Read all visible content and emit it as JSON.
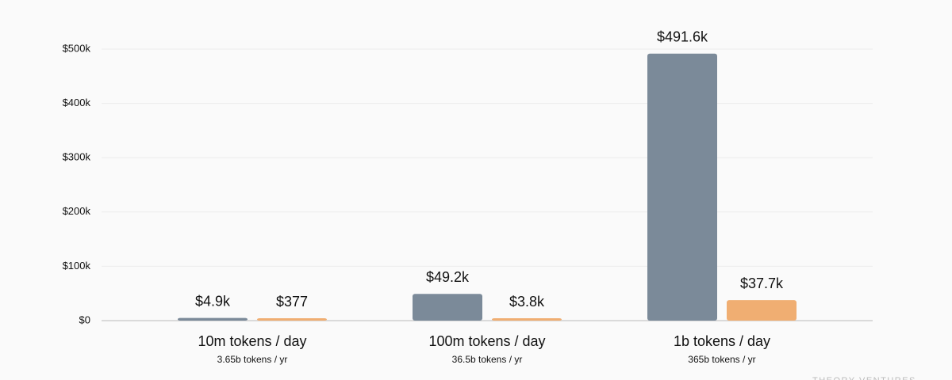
{
  "chart_data": {
    "type": "bar",
    "categories": [
      "10m tokens / day",
      "100m tokens / day",
      "1b tokens / day"
    ],
    "subcategories": [
      "3.65b tokens / yr",
      "36.5b tokens / yr",
      "365b tokens / yr"
    ],
    "series": [
      {
        "color": "#7b8a99",
        "values": [
          4900,
          49200,
          491600
        ],
        "value_labels": [
          "$4.9k",
          "$49.2k",
          "$491.6k"
        ]
      },
      {
        "color": "#f0ae72",
        "values": [
          377,
          3800,
          37700
        ],
        "value_labels": [
          "$377",
          "$3.8k",
          "$37.7k"
        ]
      }
    ],
    "ylim": [
      0,
      500000
    ],
    "yticks": [
      {
        "value": 0,
        "label": "$0"
      },
      {
        "value": 100000,
        "label": "$100k"
      },
      {
        "value": 200000,
        "label": "$200k"
      },
      {
        "value": 300000,
        "label": "$300k"
      },
      {
        "value": 400000,
        "label": "$400k"
      },
      {
        "value": 500000,
        "label": "$500k"
      }
    ],
    "grid": true,
    "watermark": "THEORY VENTURES"
  }
}
